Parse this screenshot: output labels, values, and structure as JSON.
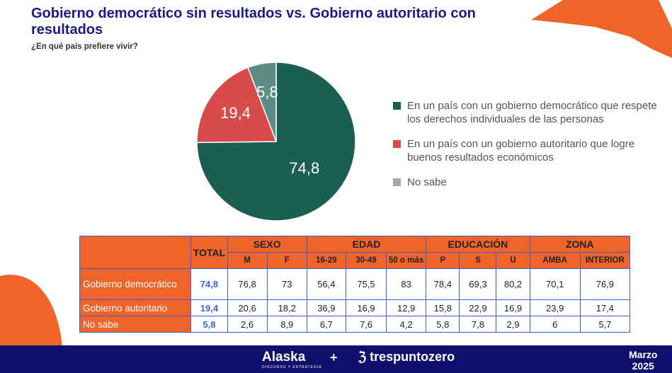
{
  "header": {
    "title": "Gobierno democrático sin resultados vs. Gobierno autoritario con resultados",
    "subtitle": "¿En qué país prefiere vivir?"
  },
  "chart_data": {
    "type": "pie",
    "slices": [
      {
        "label": "En un país con un gobierno democrático que respete los derechos individuales de las personas",
        "value": 74.8,
        "display": "74,8",
        "color": "#1b5e52"
      },
      {
        "label": "En un país con un gobierno autoritario que logre buenos resultados económicos",
        "value": 19.4,
        "display": "19,4",
        "color": "#d94b4b"
      },
      {
        "label": "No sabe",
        "value": 5.8,
        "display": "5,8",
        "color": "#5d8c84"
      }
    ],
    "legend_swatch_colors": [
      "#1b5e52",
      "#d94b4b",
      "#a9a9a9"
    ]
  },
  "table": {
    "total_header": "TOTAL",
    "groups": [
      {
        "name": "SEXO",
        "subs": [
          "M",
          "F"
        ]
      },
      {
        "name": "EDAD",
        "subs": [
          "16-29",
          "30-49",
          "50 o más"
        ]
      },
      {
        "name": "EDUCACIÓN",
        "subs": [
          "P",
          "S",
          "U"
        ]
      },
      {
        "name": "ZONA",
        "subs": [
          "AMBA",
          "INTERIOR"
        ]
      }
    ],
    "rows": [
      {
        "label": "Gobierno democrático",
        "total": "74,8",
        "values": [
          "76,8",
          "73",
          "56,4",
          "75,5",
          "83",
          "78,4",
          "69,3",
          "80,2",
          "70,1",
          "76,9"
        ]
      },
      {
        "label": "Gobierno autoritario",
        "total": "19,4",
        "values": [
          "20,6",
          "18,2",
          "36,9",
          "16,9",
          "12,9",
          "15,8",
          "22,9",
          "16,9",
          "23,9",
          "17,4"
        ]
      },
      {
        "label": "No sabe",
        "total": "5,8",
        "values": [
          "2,6",
          "8,9",
          "6,7",
          "7,6",
          "4,2",
          "5,8",
          "7,8",
          "2,9",
          "6",
          "5,7"
        ]
      }
    ]
  },
  "footer": {
    "brand1": "Alaska",
    "brand1_sub": "DISCURSO Y ESTRATEGIA",
    "plus": "+",
    "brand2": "trespuntozero",
    "date_month": "Marzo",
    "date_year": "2025"
  }
}
